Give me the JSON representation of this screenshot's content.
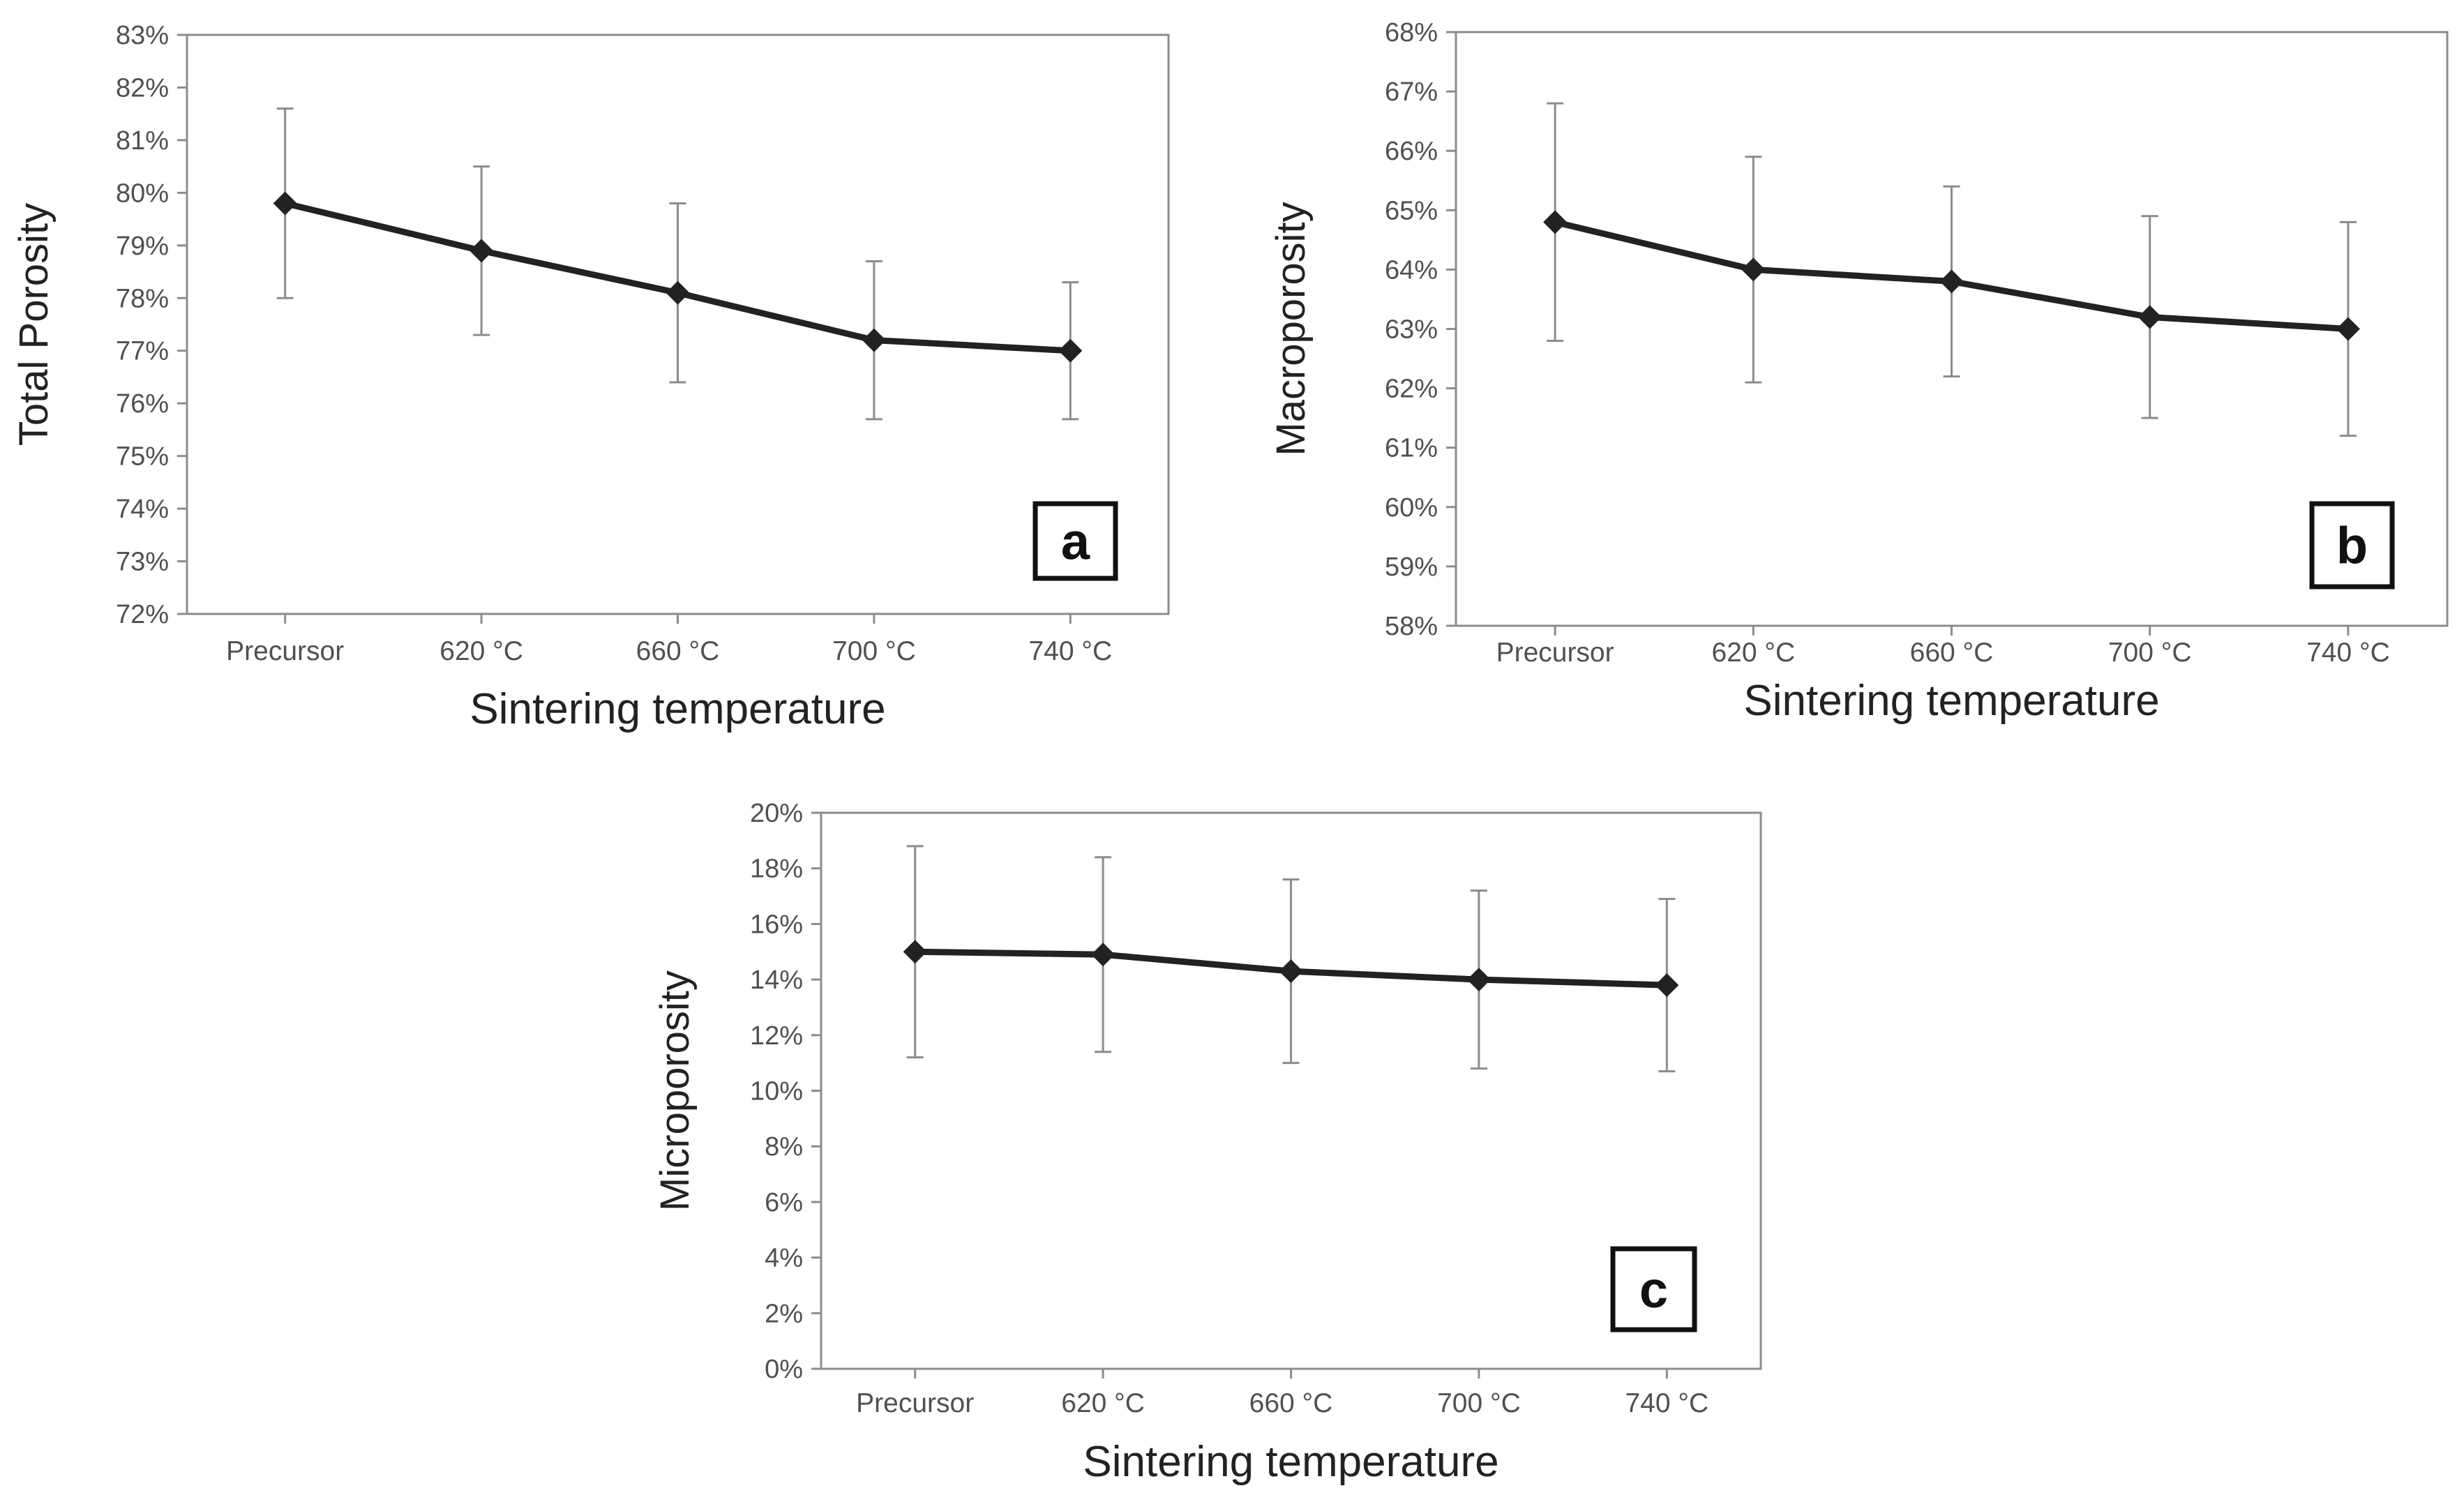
{
  "chart_data": [
    {
      "type": "line",
      "panel": "a",
      "categories": [
        "Precursor",
        "620 °C",
        "660 °C",
        "700 °C",
        "740 °C"
      ],
      "series": [
        {
          "name": "Total Porosity",
          "values": [
            79.8,
            78.9,
            78.1,
            77.2,
            77.0
          ],
          "err_low": [
            78.0,
            77.3,
            76.4,
            75.7,
            75.7
          ],
          "err_high": [
            81.6,
            80.5,
            79.8,
            78.7,
            78.3
          ]
        }
      ],
      "xlabel": "Sintering temperature",
      "ylabel": "Total Porosity",
      "ylim": [
        72,
        83
      ],
      "ystep": 1,
      "yticks": [
        "72%",
        "73%",
        "74%",
        "75%",
        "76%",
        "77%",
        "78%",
        "79%",
        "80%",
        "81%",
        "82%",
        "83%"
      ],
      "label": "a",
      "grid": false,
      "line_color": "#222222"
    },
    {
      "type": "line",
      "panel": "b",
      "categories": [
        "Precursor",
        "620 °C",
        "660 °C",
        "700 °C",
        "740 °C"
      ],
      "series": [
        {
          "name": "Macroporosity",
          "values": [
            64.8,
            64.0,
            63.8,
            63.2,
            63.0
          ],
          "err_low": [
            62.8,
            62.1,
            62.2,
            61.5,
            61.2
          ],
          "err_high": [
            66.8,
            65.9,
            65.4,
            64.9,
            64.8
          ]
        }
      ],
      "xlabel": "Sintering temperature",
      "ylabel": "Macroporosity",
      "ylim": [
        58,
        68
      ],
      "ystep": 1,
      "yticks": [
        "58%",
        "59%",
        "60%",
        "61%",
        "62%",
        "63%",
        "64%",
        "65%",
        "66%",
        "67%",
        "68%"
      ],
      "label": "b",
      "grid": false,
      "line_color": "#222222"
    },
    {
      "type": "line",
      "panel": "c",
      "categories": [
        "Precursor",
        "620 °C",
        "660 °C",
        "700 °C",
        "740 °C"
      ],
      "series": [
        {
          "name": "Microporosity",
          "values": [
            15.0,
            14.9,
            14.3,
            14.0,
            13.8
          ],
          "err_low": [
            11.2,
            11.4,
            11.0,
            10.8,
            10.7
          ],
          "err_high": [
            18.8,
            18.4,
            17.6,
            17.2,
            16.9
          ]
        }
      ],
      "xlabel": "Sintering temperature",
      "ylabel": "Microporosity",
      "ylim": [
        0,
        20
      ],
      "ystep": 2,
      "yticks": [
        "0%",
        "2%",
        "4%",
        "6%",
        "8%",
        "10%",
        "12%",
        "14%",
        "16%",
        "18%",
        "20%"
      ],
      "label": "c",
      "grid": false,
      "line_color": "#222222"
    }
  ]
}
